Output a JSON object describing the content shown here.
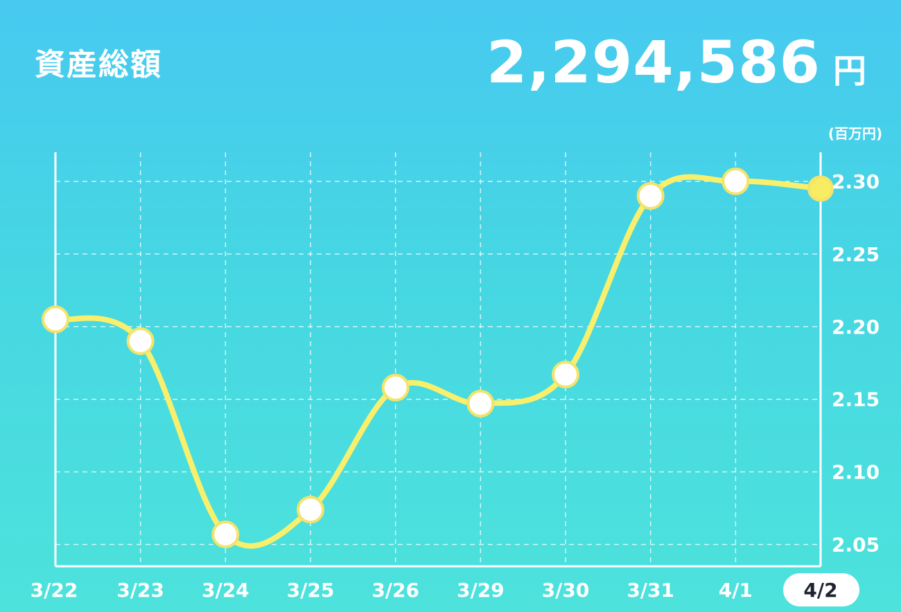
{
  "header": {
    "title": "資産総額",
    "amount": "2,294,586",
    "unit": "円"
  },
  "colors": {
    "line": "#f8f06c",
    "point_fill": "#ffffff",
    "point_stroke": "#f4e36b",
    "last_point_fill": "#f8ec63",
    "grid": "#ffffff",
    "selected_label_bg": "#ffffff",
    "selected_label_text": "#1f2330"
  },
  "chart_data": {
    "type": "line",
    "y_unit_label": "(百万円)",
    "categories": [
      "3/22",
      "3/23",
      "3/24",
      "3/25",
      "3/26",
      "3/29",
      "3/30",
      "3/31",
      "4/1",
      "4/2"
    ],
    "values": [
      2.205,
      2.19,
      2.057,
      2.074,
      2.158,
      2.147,
      2.167,
      2.29,
      2.3,
      2.295
    ],
    "y_ticks": [
      "2.30",
      "2.25",
      "2.20",
      "2.15",
      "2.10",
      "2.05"
    ],
    "ylim": [
      2.035,
      2.32
    ],
    "selected_category": "4/2",
    "grid": true,
    "line_style": "smooth"
  }
}
